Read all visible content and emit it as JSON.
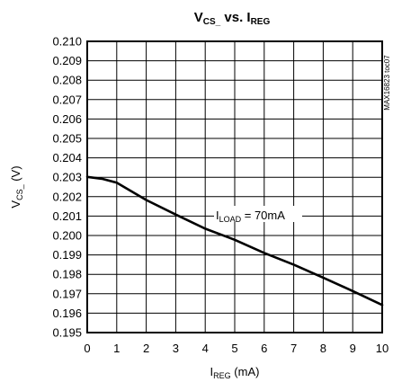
{
  "chart_data": {
    "type": "line",
    "title": {
      "a": "V",
      "a_sub": "CS_",
      "b": " vs. I",
      "b_sub": "REG"
    },
    "xlabel": {
      "a": "I",
      "a_sub": "REG",
      "b": " (mA)"
    },
    "ylabel": {
      "a": "V",
      "a_sub": "CS_",
      "b": " (V)"
    },
    "xlim": [
      0,
      10
    ],
    "ylim": [
      0.195,
      0.21
    ],
    "xticks": [
      "0",
      "1",
      "2",
      "3",
      "4",
      "5",
      "6",
      "7",
      "8",
      "9",
      "10"
    ],
    "yticks": [
      "0.195",
      "0.196",
      "0.197",
      "0.198",
      "0.199",
      "0.200",
      "0.201",
      "0.202",
      "0.203",
      "0.204",
      "0.205",
      "0.206",
      "0.207",
      "0.208",
      "0.209",
      "0.210"
    ],
    "grid": true,
    "annotation": {
      "a": "I",
      "a_sub": "LOAD",
      "b": " = 70mA"
    },
    "side_label": "MAX16823 toc07",
    "series": [
      {
        "x": [
          0,
          0.5,
          1,
          2,
          3,
          4,
          5,
          6,
          7,
          8,
          9,
          10
        ],
        "y": [
          0.20302,
          0.20292,
          0.20272,
          0.20183,
          0.20108,
          0.20035,
          0.19978,
          0.1991,
          0.1985,
          0.19783,
          0.19714,
          0.19642
        ]
      }
    ]
  }
}
